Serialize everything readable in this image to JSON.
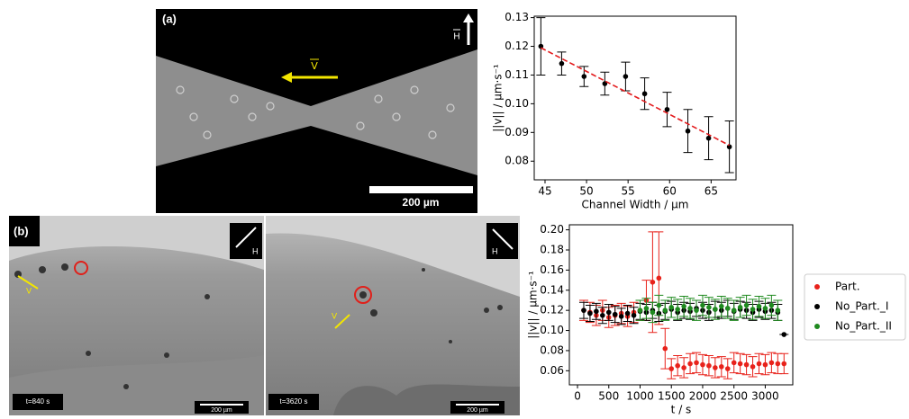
{
  "panels": {
    "a": {
      "label": "(a)",
      "scale": "200 µm",
      "field": "H",
      "velocity": "V"
    },
    "b": {
      "label": "(b)",
      "left": {
        "time": "t=840 s",
        "scale": "200 µm",
        "field": "H",
        "velocity": "V"
      },
      "right": {
        "time": "t=3620 s",
        "scale": "200 µm",
        "field": "H",
        "velocity": "V"
      }
    }
  },
  "chart_data": [
    {
      "type": "scatter",
      "xlabel": "Channel Width / µm",
      "ylabel": "||v|| / µm·s⁻¹",
      "xlim": [
        43.7,
        68
      ],
      "xticks": [
        45,
        50,
        55,
        60,
        65
      ],
      "ylim": [
        0.0735,
        0.1305
      ],
      "yticks": [
        0.08,
        0.09,
        {
          "value": 0.1,
          "label": "0.10"
        },
        0.11,
        0.12,
        0.13
      ],
      "series": [
        {
          "color": "#000000",
          "x": [
            44.5,
            47,
            49.7,
            52.2,
            54.7,
            57,
            59.7,
            62.2,
            64.7,
            67.2
          ],
          "values": [
            0.12,
            0.114,
            0.1095,
            0.107,
            0.1095,
            0.1035,
            0.098,
            0.0905,
            0.088,
            0.085
          ],
          "errors": [
            0.01,
            0.004,
            0.0035,
            0.004,
            0.005,
            0.0055,
            0.006,
            0.0075,
            0.0075,
            0.009
          ]
        }
      ],
      "fit": {
        "color": "#e31a1c",
        "x": [
          44.5,
          67.2
        ],
        "values": [
          0.1195,
          0.0855
        ]
      }
    },
    {
      "type": "scatter",
      "xlabel": "t / s",
      "ylabel": "||v|| / µm·s⁻¹",
      "xlim": [
        -130,
        3440
      ],
      "xticks": [
        0,
        500,
        1000,
        1500,
        2000,
        2500,
        3000
      ],
      "ylim": [
        0.046,
        0.205
      ],
      "yticks": [
        0.06,
        0.08,
        {
          "value": 0.1,
          "label": "0.10"
        },
        0.12,
        0.14,
        0.16,
        0.18,
        {
          "value": 0.2,
          "label": "0.20"
        }
      ],
      "legend": "outside right",
      "series": [
        {
          "name": "Part.",
          "color": "#e8221b",
          "x": [
            100,
            200,
            300,
            400,
            500,
            600,
            700,
            800,
            900,
            1000,
            1100,
            1200,
            1300,
            1400,
            1500,
            1600,
            1700,
            1800,
            1900,
            2000,
            2100,
            2200,
            2300,
            2400,
            2500,
            2600,
            2700,
            2800,
            2900,
            3000,
            3100,
            3200,
            3300
          ],
          "values": [
            0.12,
            0.118,
            0.115,
            0.12,
            0.113,
            0.115,
            0.117,
            0.114,
            0.118,
            0.12,
            0.13,
            0.148,
            0.152,
            0.082,
            0.062,
            0.065,
            0.063,
            0.067,
            0.068,
            0.066,
            0.065,
            0.063,
            0.064,
            0.062,
            0.068,
            0.067,
            0.066,
            0.064,
            0.067,
            0.066,
            0.068,
            0.067,
            0.067
          ],
          "errors": [
            0.01,
            0.01,
            0.01,
            0.01,
            0.01,
            0.01,
            0.01,
            0.01,
            0.01,
            0.01,
            0.02,
            0.05,
            0.046,
            0.02,
            0.01,
            0.01,
            0.01,
            0.01,
            0.01,
            0.01,
            0.01,
            0.01,
            0.01,
            0.01,
            0.01,
            0.01,
            0.01,
            0.01,
            0.01,
            0.01,
            0.01,
            0.01,
            0.01
          ]
        },
        {
          "name": "No_Part._I",
          "color": "#000000",
          "x": [
            100,
            200,
            300,
            400,
            500,
            600,
            700,
            800,
            900,
            1000,
            1100,
            1200,
            1300,
            1400,
            1500,
            1600,
            1700,
            1800,
            1900,
            2000,
            2100,
            2200,
            2300,
            2400,
            2500,
            2600,
            2700,
            2800,
            2900,
            3000,
            3100,
            3200,
            3300
          ],
          "values": [
            0.12,
            0.117,
            0.119,
            0.115,
            0.118,
            0.116,
            0.114,
            0.117,
            0.115,
            0.119,
            0.118,
            0.12,
            0.117,
            0.119,
            0.121,
            0.118,
            0.12,
            0.119,
            0.122,
            0.12,
            0.118,
            0.121,
            0.12,
            0.122,
            0.119,
            0.121,
            0.12,
            0.118,
            0.121,
            0.119,
            0.12,
            0.118,
            0.096
          ],
          "errors": [
            0.008,
            0.008,
            0.008,
            0.008,
            0.008,
            0.008,
            0.008,
            0.008,
            0.008,
            0.008,
            0.008,
            0.008,
            0.008,
            0.008,
            0.008,
            0.008,
            0.008,
            0.008,
            0.008,
            0.008,
            0.008,
            0.008,
            0.008,
            0.008,
            0.008,
            0.008,
            0.008,
            0.008,
            0.008,
            0.008,
            0.008,
            0.008,
            0
          ]
        },
        {
          "name": "No_Part._II",
          "color": "#1f8a1f",
          "x": [
            1000,
            1100,
            1200,
            1300,
            1400,
            1500,
            1600,
            1700,
            1800,
            1900,
            2000,
            2100,
            2200,
            2300,
            2400,
            2500,
            2600,
            2700,
            2800,
            2900,
            3000,
            3100,
            3200
          ],
          "values": [
            0.12,
            0.122,
            0.118,
            0.125,
            0.12,
            0.123,
            0.121,
            0.124,
            0.122,
            0.12,
            0.125,
            0.123,
            0.121,
            0.124,
            0.122,
            0.12,
            0.123,
            0.125,
            0.121,
            0.124,
            0.122,
            0.125,
            0.12
          ],
          "errors": [
            0.01,
            0.01,
            0.01,
            0.01,
            0.01,
            0.01,
            0.01,
            0.01,
            0.01,
            0.01,
            0.01,
            0.01,
            0.01,
            0.01,
            0.01,
            0.01,
            0.01,
            0.01,
            0.01,
            0.01,
            0.01,
            0.01,
            0.01
          ]
        }
      ]
    }
  ]
}
